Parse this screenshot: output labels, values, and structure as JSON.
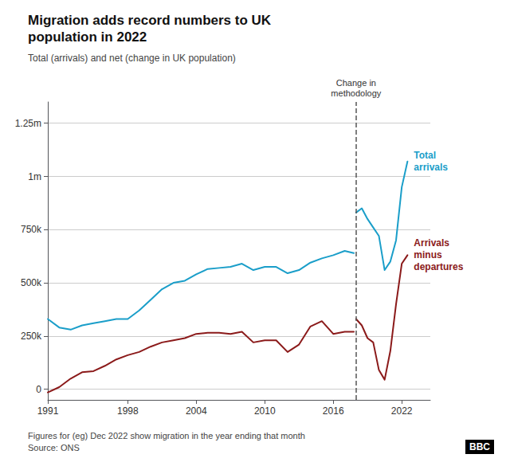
{
  "chart_data": {
    "type": "line",
    "title": "Migration adds record numbers to UK\npopulation in 2022",
    "subtitle": "Total (arrivals) and net (change in UK population)",
    "footnote": "Figures for (eg) Dec 2022 show migration in the year ending that month",
    "source": "Source: ONS",
    "logo": "BBC",
    "series": [
      {
        "color": "#1a9ec9",
        "x": [
          1991,
          1992,
          1993,
          1994,
          1995,
          1996,
          1997,
          1998,
          1999,
          2000,
          2001,
          2002,
          2003,
          2004,
          2005,
          2006,
          2007,
          2008,
          2009,
          2010,
          2011,
          2012,
          2013,
          2014,
          2015,
          2016,
          2017,
          2017.8
        ],
        "values": [
          330000,
          290000,
          280000,
          300000,
          310000,
          320000,
          330000,
          330000,
          370000,
          420000,
          470000,
          500000,
          510000,
          540000,
          565000,
          570000,
          575000,
          590000,
          560000,
          575000,
          575000,
          545000,
          560000,
          595000,
          615000,
          630000,
          650000,
          640000
        ]
      },
      {
        "color": "#8b1a1a",
        "x": [
          1991,
          1992,
          1993,
          1994,
          1995,
          1996,
          1997,
          1998,
          1999,
          2000,
          2001,
          2002,
          2003,
          2004,
          2005,
          2006,
          2007,
          2008,
          2009,
          2010,
          2011,
          2012,
          2013,
          2014,
          2015,
          2016,
          2017,
          2017.8
        ],
        "values": [
          -15000,
          10000,
          50000,
          80000,
          85000,
          110000,
          140000,
          160000,
          175000,
          200000,
          220000,
          230000,
          240000,
          260000,
          265000,
          265000,
          260000,
          270000,
          220000,
          230000,
          230000,
          175000,
          210000,
          295000,
          320000,
          260000,
          270000,
          270000
        ]
      },
      {
        "name": "Total\narrivals",
        "color": "#1a9ec9",
        "x": [
          2018,
          2018.5,
          2019,
          2019.5,
          2020,
          2020.5,
          2021,
          2021.5,
          2022,
          2022.5
        ],
        "values": [
          830000,
          850000,
          800000,
          760000,
          720000,
          560000,
          600000,
          700000,
          950000,
          1070000
        ]
      },
      {
        "name": "Arrivals\nminus\ndepartures",
        "color": "#8b1a1a",
        "x": [
          2018,
          2018.5,
          2019,
          2019.5,
          2020,
          2020.5,
          2021,
          2021.5,
          2022,
          2022.5
        ],
        "values": [
          330000,
          300000,
          240000,
          220000,
          90000,
          45000,
          180000,
          400000,
          590000,
          630000
        ]
      }
    ],
    "annotations": [
      {
        "x": 2018,
        "text": "Change in\nmethodology",
        "line_style": "dashed"
      }
    ],
    "xlim": [
      1991,
      2024.5
    ],
    "xticks": [
      1991,
      1998,
      2004,
      2010,
      2016,
      2022
    ],
    "ylim": [
      -50000,
      1350000
    ],
    "yticks": [
      0,
      {
        "value": 250000,
        "label": "250k"
      },
      {
        "value": 500000,
        "label": "500k"
      },
      {
        "value": 750000,
        "label": "750k"
      },
      {
        "value": 1000000,
        "label": "1m"
      },
      {
        "value": 1250000,
        "label": "1.25m"
      }
    ],
    "grid": true
  }
}
